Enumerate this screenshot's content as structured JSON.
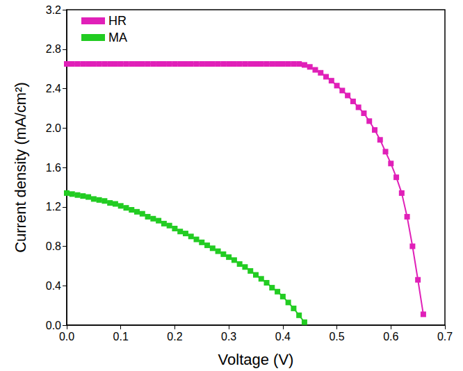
{
  "chart_data": {
    "type": "line",
    "x_label": "Voltage (V)",
    "y_label": "Current density (mA/cm²)",
    "xlim": [
      0,
      0.7
    ],
    "xticks": [
      {
        "value": 0,
        "label": "0.0"
      },
      0.1,
      0.2,
      0.3,
      0.4,
      0.5,
      0.6,
      0.7
    ],
    "ylim": [
      0,
      3.2
    ],
    "yticks": [
      {
        "value": 0,
        "label": "0.0"
      },
      0.4,
      0.8,
      1.2,
      1.6,
      {
        "value": 2,
        "label": "2.0"
      },
      2.4,
      2.8,
      3.2
    ],
    "grid": false,
    "legend": "upper left",
    "marker": "square",
    "line_style": "solid",
    "series": [
      {
        "name": "HR",
        "color": "#e020b8",
        "x": [
          0,
          0.01,
          0.02,
          0.03,
          0.04,
          0.05,
          0.06,
          0.07,
          0.08,
          0.09,
          0.1,
          0.11,
          0.12,
          0.13,
          0.14,
          0.15,
          0.16,
          0.17,
          0.18,
          0.19,
          0.2,
          0.21,
          0.22,
          0.23,
          0.24,
          0.25,
          0.26,
          0.27,
          0.28,
          0.29,
          0.3,
          0.31,
          0.32,
          0.33,
          0.34,
          0.35,
          0.36,
          0.37,
          0.38,
          0.39,
          0.4,
          0.41,
          0.42,
          0.43,
          0.44,
          0.45,
          0.46,
          0.47,
          0.48,
          0.49,
          0.5,
          0.51,
          0.52,
          0.53,
          0.54,
          0.55,
          0.56,
          0.57,
          0.58,
          0.59,
          0.6,
          0.61,
          0.62,
          0.63,
          0.64,
          0.65,
          0.66
        ],
        "values": [
          2.65,
          2.65,
          2.65,
          2.65,
          2.65,
          2.65,
          2.65,
          2.65,
          2.65,
          2.65,
          2.65,
          2.65,
          2.65,
          2.65,
          2.65,
          2.65,
          2.65,
          2.65,
          2.65,
          2.65,
          2.65,
          2.65,
          2.65,
          2.65,
          2.65,
          2.65,
          2.65,
          2.65,
          2.65,
          2.65,
          2.65,
          2.65,
          2.65,
          2.65,
          2.65,
          2.65,
          2.65,
          2.65,
          2.65,
          2.65,
          2.65,
          2.65,
          2.65,
          2.65,
          2.64,
          2.62,
          2.59,
          2.56,
          2.52,
          2.48,
          2.43,
          2.38,
          2.33,
          2.27,
          2.21,
          2.15,
          2.07,
          1.98,
          1.88,
          1.76,
          1.64,
          1.5,
          1.34,
          1.1,
          0.8,
          0.46,
          0.11
        ]
      },
      {
        "name": "MA",
        "color": "#22cc22",
        "x": [
          0,
          0.01,
          0.02,
          0.03,
          0.04,
          0.05,
          0.06,
          0.07,
          0.08,
          0.09,
          0.1,
          0.11,
          0.12,
          0.13,
          0.14,
          0.15,
          0.16,
          0.17,
          0.18,
          0.19,
          0.2,
          0.21,
          0.22,
          0.23,
          0.24,
          0.25,
          0.26,
          0.27,
          0.28,
          0.29,
          0.3,
          0.31,
          0.32,
          0.33,
          0.34,
          0.35,
          0.36,
          0.37,
          0.38,
          0.39,
          0.4,
          0.41,
          0.42,
          0.43,
          0.44
        ],
        "values": [
          1.34,
          1.33,
          1.32,
          1.31,
          1.3,
          1.28,
          1.27,
          1.26,
          1.24,
          1.23,
          1.21,
          1.19,
          1.17,
          1.15,
          1.13,
          1.1,
          1.08,
          1.06,
          1.03,
          1.01,
          0.98,
          0.95,
          0.93,
          0.9,
          0.87,
          0.84,
          0.81,
          0.78,
          0.75,
          0.72,
          0.69,
          0.66,
          0.62,
          0.59,
          0.55,
          0.51,
          0.47,
          0.43,
          0.38,
          0.34,
          0.29,
          0.23,
          0.17,
          0.1,
          0.03
        ]
      }
    ]
  }
}
